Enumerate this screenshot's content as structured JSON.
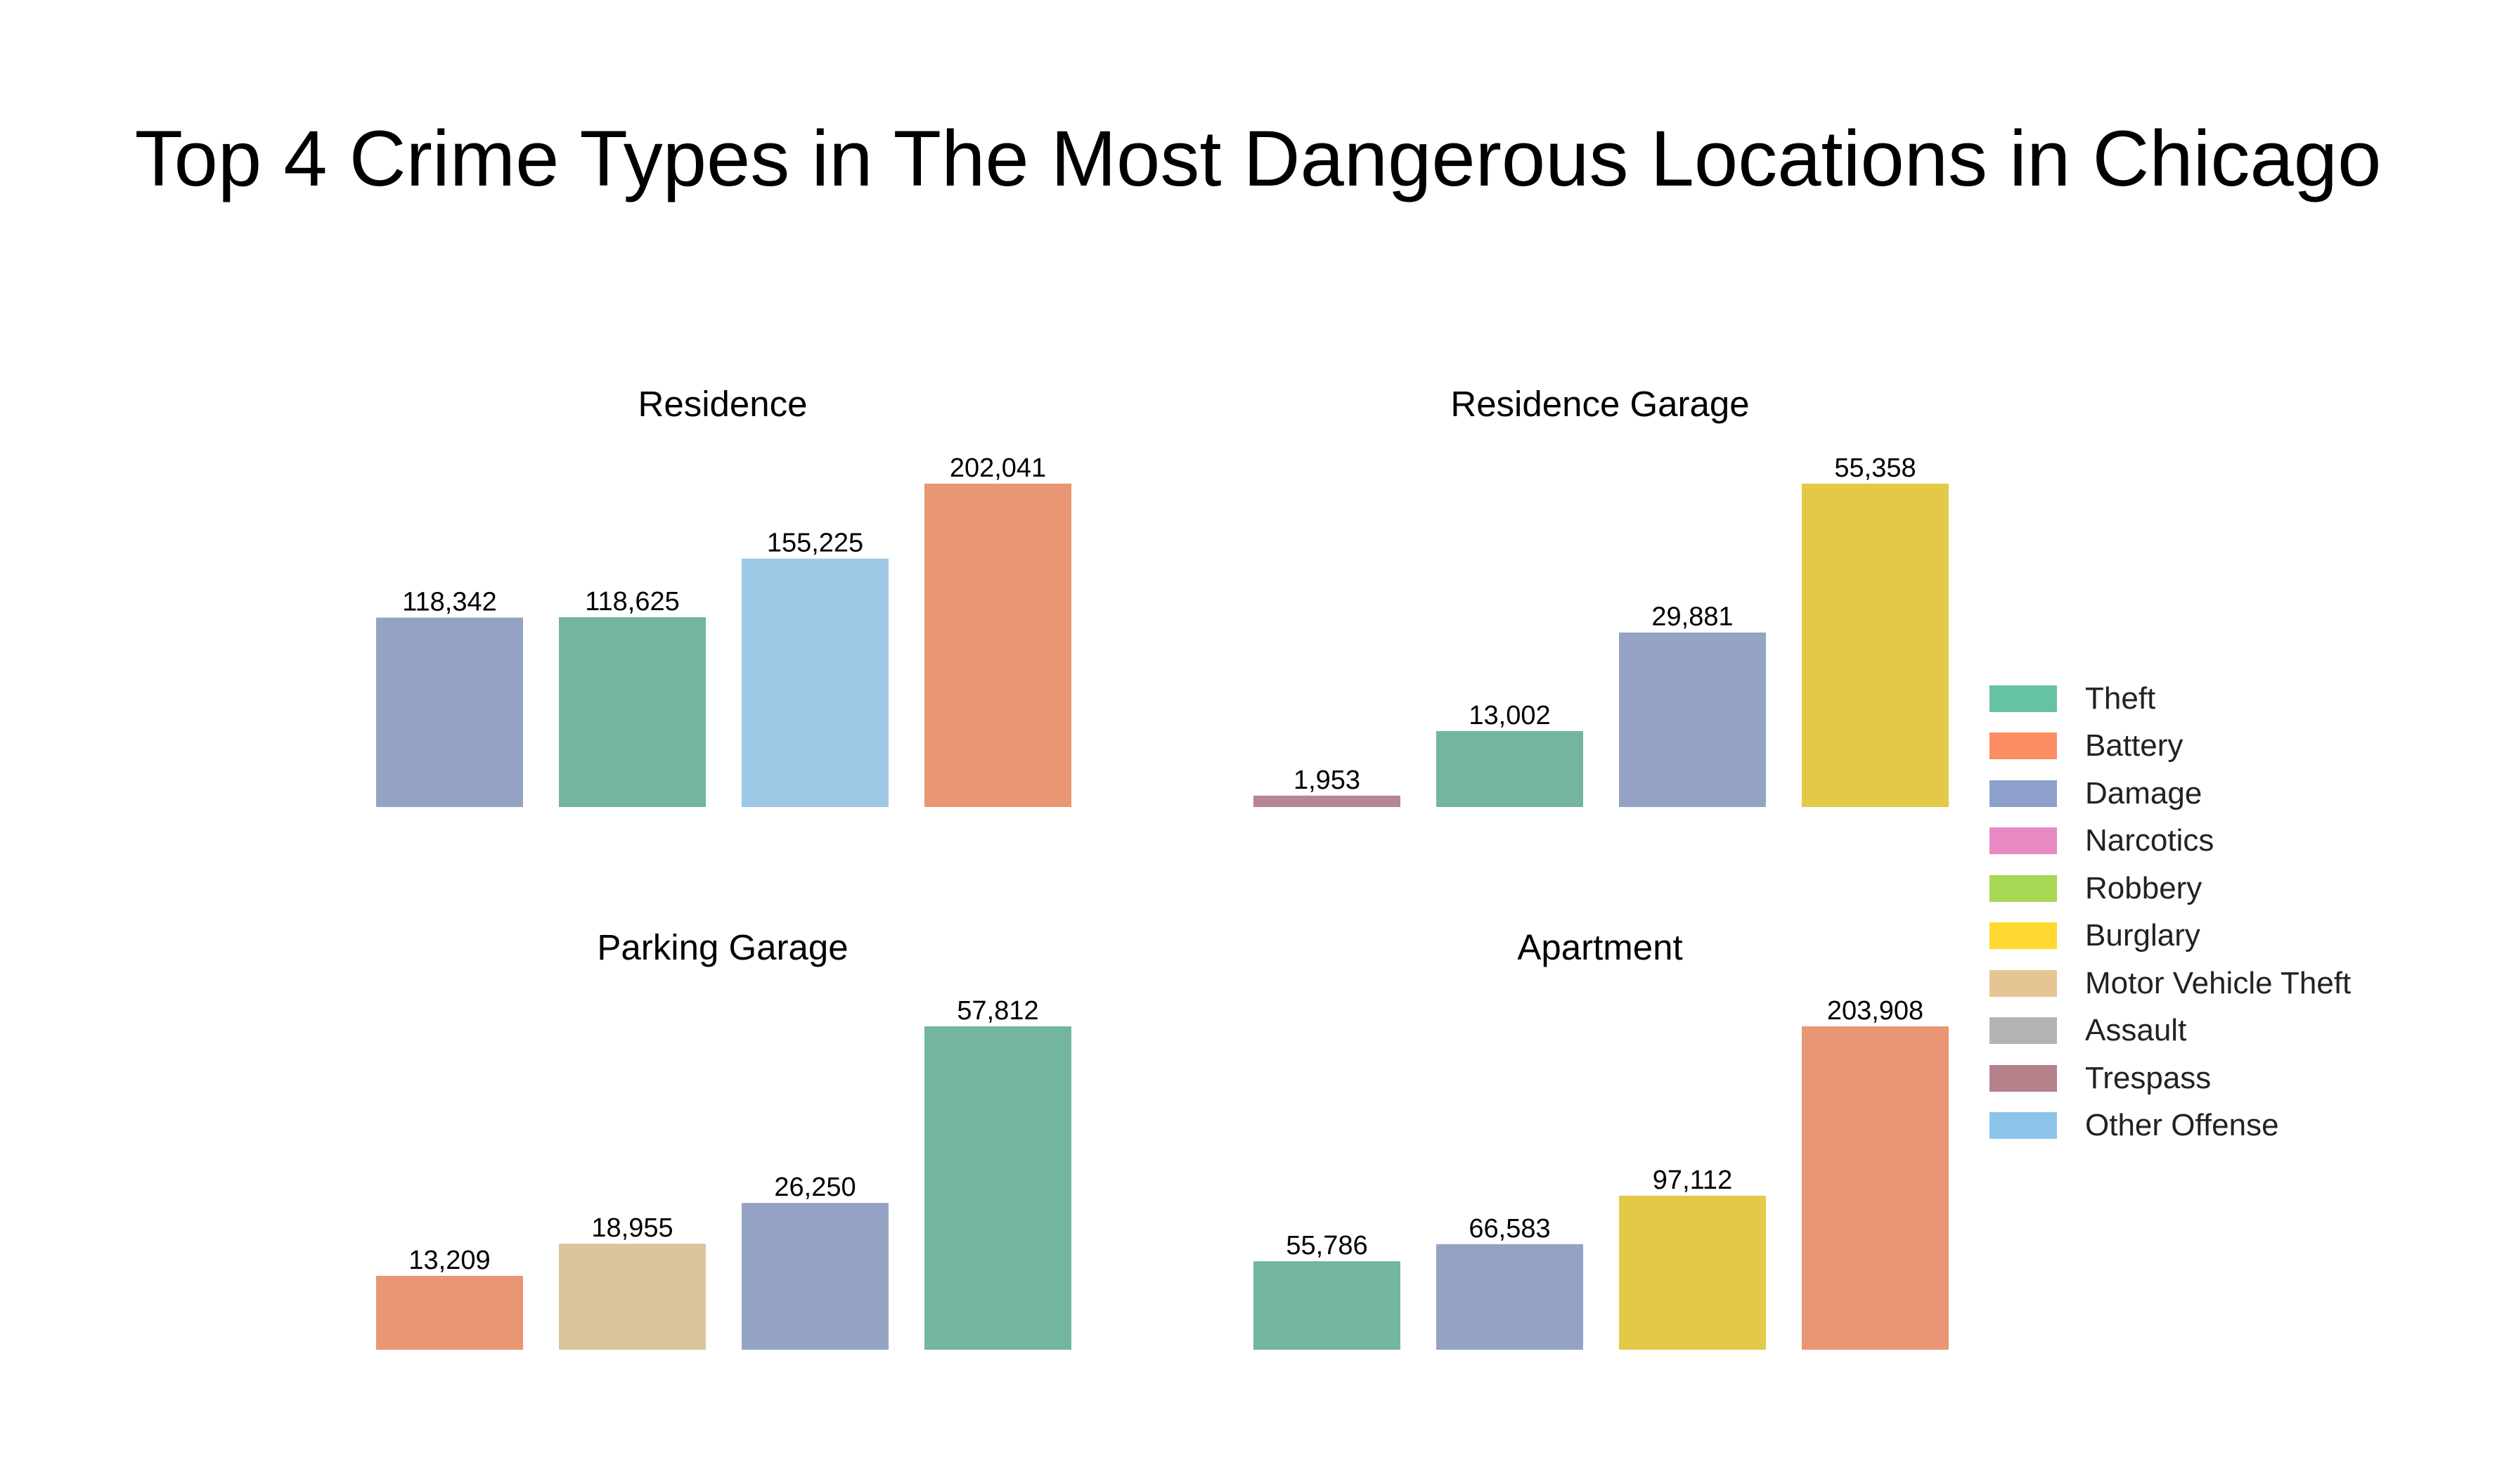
{
  "title": "Top 4 Crime Types in The Most Dangerous Locations in Chicago",
  "legend": [
    {
      "name": "Theft",
      "color": "#66c2a5"
    },
    {
      "name": "Battery",
      "color": "#fc8d62"
    },
    {
      "name": "Damage",
      "color": "#8da0cb"
    },
    {
      "name": "Narcotics",
      "color": "#e78ac3"
    },
    {
      "name": "Robbery",
      "color": "#a6d854"
    },
    {
      "name": "Burglary",
      "color": "#ffd92f"
    },
    {
      "name": "Motor Vehicle Theft",
      "color": "#e5c494"
    },
    {
      "name": "Assault",
      "color": "#b3b3b3"
    },
    {
      "name": "Trespass",
      "color": "#b5828c"
    },
    {
      "name": "Other Offense",
      "color": "#8dc5ea"
    }
  ],
  "chart_data": [
    {
      "type": "bar",
      "title": "Residence",
      "categories": [
        "Damage",
        "Theft",
        "Other Offense",
        "Battery"
      ],
      "values": [
        118342,
        118625,
        155225,
        202041
      ],
      "labels": [
        "118,342",
        "118,625",
        "155,225",
        "202,041"
      ],
      "colors": [
        "#94a3c4",
        "#73b5a0",
        "#9dc8e6",
        "#e89673"
      ],
      "ylim": [
        0,
        202041
      ]
    },
    {
      "type": "bar",
      "title": "Residence Garage",
      "categories": [
        "Trespass",
        "Theft",
        "Damage",
        "Burglary"
      ],
      "values": [
        1953,
        13002,
        29881,
        55358
      ],
      "labels": [
        "1,953",
        "13,002",
        "29,881",
        "55,358"
      ],
      "colors": [
        "#b5869a",
        "#73b5a0",
        "#94a3c4",
        "#e3c947"
      ],
      "ylim": [
        0,
        55358
      ]
    },
    {
      "type": "bar",
      "title": "Parking Garage",
      "categories": [
        "Battery",
        "Motor Vehicle Theft",
        "Damage",
        "Theft"
      ],
      "values": [
        13209,
        18955,
        26250,
        57812
      ],
      "labels": [
        "13,209",
        "18,955",
        "26,250",
        "57,812"
      ],
      "colors": [
        "#e89673",
        "#dbc39c",
        "#94a3c4",
        "#73b5a0"
      ],
      "ylim": [
        0,
        57812
      ]
    },
    {
      "type": "bar",
      "title": "Apartment",
      "categories": [
        "Theft",
        "Damage",
        "Burglary",
        "Battery"
      ],
      "values": [
        55786,
        66583,
        97112,
        203908
      ],
      "labels": [
        "55,786",
        "66,583",
        "97,112",
        "203,908"
      ],
      "colors": [
        "#73b5a0",
        "#94a3c4",
        "#e3c947",
        "#e89673"
      ],
      "ylim": [
        0,
        203908
      ]
    }
  ]
}
